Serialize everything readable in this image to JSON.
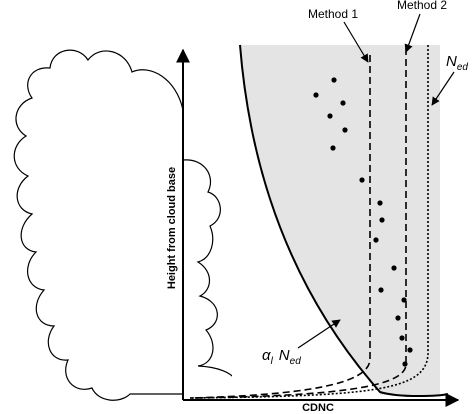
{
  "labels": {
    "method_1": "Method 1",
    "method_2": "Method 2",
    "n_ed": {
      "symbol": "N",
      "subscript": "ed"
    },
    "alpha_n_ed": {
      "alpha": "α",
      "alpha_subscript": "l",
      "symbol": "N",
      "subscript": "ed"
    },
    "y_axis": "Height from cloud base",
    "x_axis": "CDNC"
  }
}
